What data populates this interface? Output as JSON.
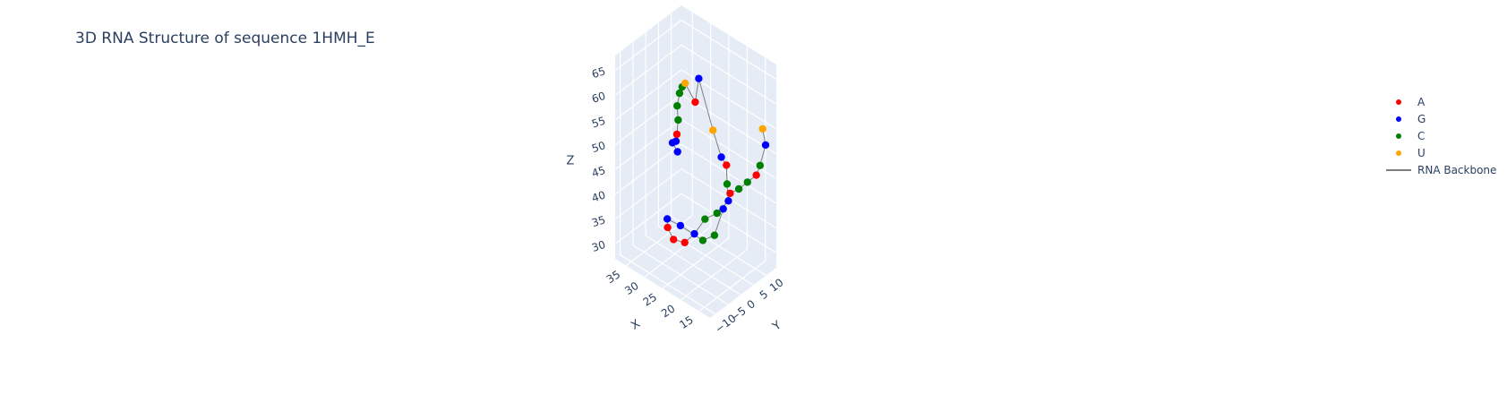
{
  "chart_data": {
    "type": "scatter3d",
    "title": "3D RNA Structure of sequence 1HMH_E",
    "axes": {
      "x": {
        "title": "X",
        "ticks": [
          15,
          20,
          25,
          30,
          35
        ],
        "range": [
          12,
          38
        ]
      },
      "y": {
        "title": "Y",
        "ticks": [
          -10,
          -5,
          0,
          5,
          10
        ],
        "range": [
          -12,
          14
        ]
      },
      "z": {
        "title": "Z",
        "ticks": [
          30,
          35,
          40,
          45,
          50,
          55,
          60,
          65
        ],
        "range": [
          27,
          68
        ]
      }
    },
    "series": [
      {
        "name": "A",
        "color": "#ff0000"
      },
      {
        "name": "G",
        "color": "#0000ff"
      },
      {
        "name": "C",
        "color": "#008000"
      },
      {
        "name": "U",
        "color": "#ffa500"
      },
      {
        "name": "RNA Backbone",
        "color": "#7f7f7f",
        "mode": "lines"
      }
    ],
    "residues": [
      {
        "x": 35.5,
        "y": 8.9,
        "z": 41.6,
        "nt": "G"
      },
      {
        "x": 35.5,
        "y": 6.9,
        "z": 44.2,
        "nt": "G"
      },
      {
        "x": 33.2,
        "y": 5.0,
        "z": 46.3,
        "nt": "G"
      },
      {
        "x": 31.7,
        "y": 3.2,
        "z": 49.1,
        "nt": "A"
      },
      {
        "x": 30.8,
        "y": 2.4,
        "z": 52.7,
        "nt": "C"
      },
      {
        "x": 30.3,
        "y": 1.3,
        "z": 56.2,
        "nt": "C"
      },
      {
        "x": 29.3,
        "y": 0.8,
        "z": 59.4,
        "nt": "C"
      },
      {
        "x": 28.1,
        "y": 0.1,
        "z": 61.5,
        "nt": "C"
      },
      {
        "x": 27.0,
        "y": -0.3,
        "z": 62.9,
        "nt": "U"
      },
      {
        "x": 24.1,
        "y": -0.5,
        "z": 60.5,
        "nt": "A"
      },
      {
        "x": 24.8,
        "y": 1.9,
        "z": 64.0,
        "nt": "G"
      },
      {
        "x": 19.8,
        "y": 0.3,
        "z": 56.5,
        "nt": "U"
      },
      {
        "x": 18.9,
        "y": 2.3,
        "z": 50.7,
        "nt": "G"
      },
      {
        "x": 19.1,
        "y": 4.6,
        "z": 48.1,
        "nt": "A"
      },
      {
        "x": 19.0,
        "y": 4.7,
        "z": 44.3,
        "nt": "C"
      },
      {
        "x": 19.2,
        "y": 5.5,
        "z": 40.5,
        "nt": "G"
      },
      {
        "x": 21.9,
        "y": 4.9,
        "z": 37.0,
        "nt": "C"
      },
      {
        "x": 25.2,
        "y": 4.9,
        "z": 34.3,
        "nt": "C"
      },
      {
        "x": 27.6,
        "y": 4.2,
        "z": 30.5,
        "nt": "G"
      },
      {
        "x": 29.2,
        "y": 2.7,
        "z": 28.6,
        "nt": "A"
      },
      {
        "x": 30.8,
        "y": 0.6,
        "z": 29.3,
        "nt": "A"
      },
      {
        "x": 31.8,
        "y": -0.3,
        "z": 31.6,
        "nt": "A"
      },
      {
        "x": 31.2,
        "y": -1.3,
        "z": 34.0,
        "nt": "G"
      },
      {
        "x": 27.8,
        "y": -1.0,
        "z": 34.1,
        "nt": "G"
      },
      {
        "x": 21.1,
        "y": -1.8,
        "z": 34.5,
        "nt": "C"
      },
      {
        "x": 18.2,
        "y": -1.4,
        "z": 36.7,
        "nt": "C"
      },
      {
        "x": 17.2,
        "y": 0.6,
        "z": 41.7,
        "nt": "G"
      },
      {
        "x": 16.0,
        "y": 1.6,
        "z": 45.0,
        "nt": "A"
      },
      {
        "x": 13.2,
        "y": 1.0,
        "z": 47.4,
        "nt": "C"
      },
      {
        "x": 10.7,
        "y": 0.8,
        "z": 50.0,
        "nt": "C"
      },
      {
        "x": 8.2,
        "y": 0.7,
        "z": 52.6,
        "nt": "A"
      },
      {
        "x": 6.9,
        "y": 0.3,
        "z": 55.3,
        "nt": "C"
      },
      {
        "x": 5.8,
        "y": 0.9,
        "z": 59.7,
        "nt": "G"
      },
      {
        "x": 5.7,
        "y": -0.4,
        "z": 63.5,
        "nt": "U"
      }
    ]
  },
  "legend": {
    "items": [
      {
        "label": "A",
        "color": "#ff0000",
        "kind": "marker"
      },
      {
        "label": "G",
        "color": "#0000ff",
        "kind": "marker"
      },
      {
        "label": "C",
        "color": "#008000",
        "kind": "marker"
      },
      {
        "label": "U",
        "color": "#ffa500",
        "kind": "marker"
      },
      {
        "label": "RNA Backbone",
        "color": "#7f7f7f",
        "kind": "line"
      }
    ]
  }
}
